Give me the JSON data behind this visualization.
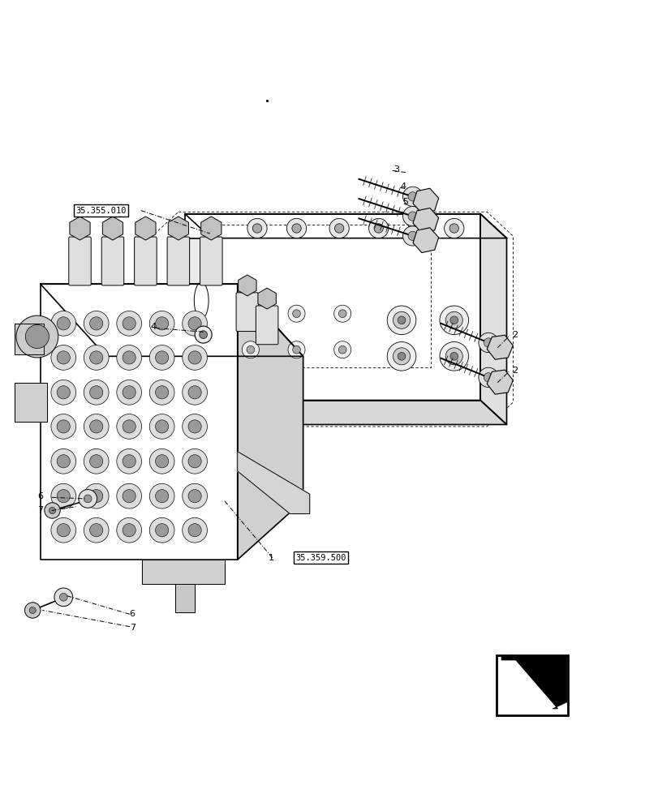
{
  "bg_color": "#ffffff",
  "line_color": "#000000",
  "figure_width": 8.12,
  "figure_height": 10.0,
  "dpi": 100,
  "labels": {
    "ref_35355010": "35.355.010",
    "ref_35359500": "35.359.500",
    "num1": "1",
    "num2": "2",
    "num3": "3",
    "num4": "4",
    "num5": "5",
    "num6": "6",
    "num7": "7"
  }
}
